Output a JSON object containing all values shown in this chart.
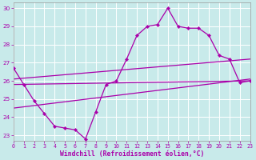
{
  "xlabel": "Windchill (Refroidissement éolien,°C)",
  "xlim": [
    0,
    23
  ],
  "ylim": [
    22.7,
    30.3
  ],
  "xticks": [
    0,
    1,
    2,
    3,
    4,
    5,
    6,
    7,
    8,
    9,
    10,
    11,
    12,
    13,
    14,
    15,
    16,
    17,
    18,
    19,
    20,
    21,
    22,
    23
  ],
  "yticks": [
    23,
    24,
    25,
    26,
    27,
    28,
    29,
    30
  ],
  "bg_color": "#c8eaea",
  "grid_color": "#ffffff",
  "line_color": "#aa00aa",
  "main_x": [
    0,
    1,
    2,
    3,
    4,
    5,
    6,
    7,
    8,
    9,
    10,
    11,
    12,
    13,
    14,
    15,
    16,
    17,
    18,
    19,
    20,
    21,
    22,
    23
  ],
  "main_y": [
    26.7,
    25.8,
    24.9,
    24.2,
    23.5,
    23.4,
    23.3,
    22.8,
    24.3,
    25.8,
    26.0,
    27.2,
    28.5,
    29.0,
    29.1,
    30.0,
    29.0,
    28.9,
    28.9,
    28.5,
    27.4,
    27.2,
    25.9,
    26.0
  ],
  "trend1_x": [
    0,
    23
  ],
  "trend1_y": [
    26.1,
    27.2
  ],
  "trend2_x": [
    0,
    23
  ],
  "trend2_y": [
    25.8,
    26.0
  ],
  "trend3_x": [
    0,
    23
  ],
  "trend3_y": [
    24.5,
    26.1
  ]
}
